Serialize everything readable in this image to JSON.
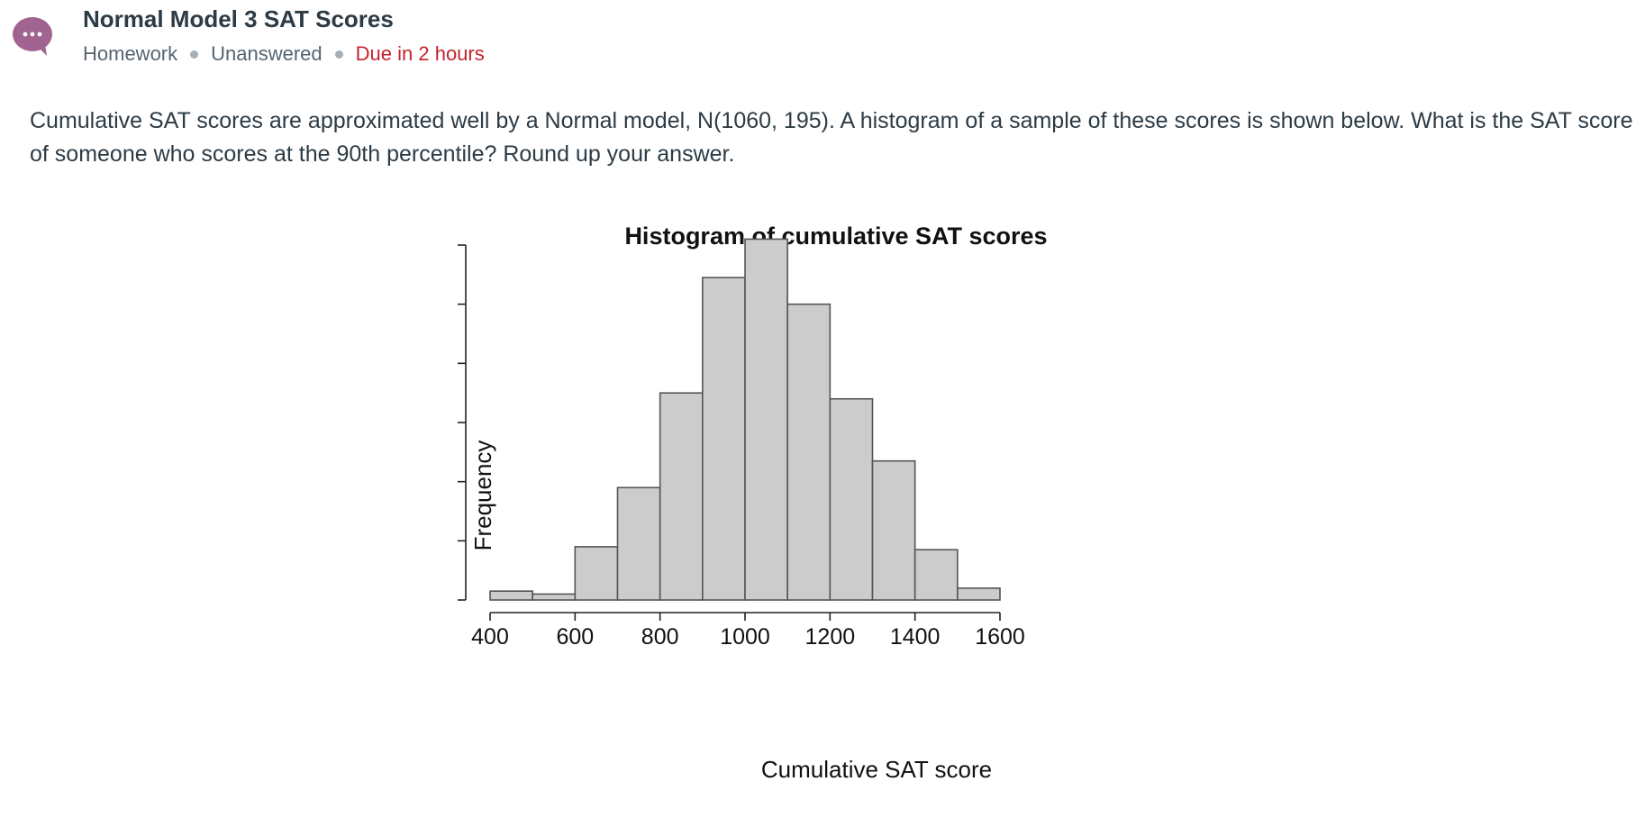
{
  "header": {
    "icon": "chat-bubble-icon",
    "title": "Normal Model 3 SAT Scores",
    "meta": {
      "type": "Homework",
      "status": "Unanswered",
      "due": "Due in 2 hours"
    },
    "colors": {
      "icon": "#a1638f",
      "due": "#c3232e"
    }
  },
  "question": {
    "text": "Cumulative SAT scores are approximated well by a Normal model, N(1060, 195). A histogram of a sample of these scores is shown below. What is the SAT score of someone who scores at the 90th percentile? Round up your answer."
  },
  "chart_data": {
    "type": "bar",
    "title": "Histogram of cumulative SAT scores",
    "xlabel": "Cumulative SAT score",
    "ylabel": "Frequency",
    "bin_edges": [
      400,
      500,
      600,
      700,
      800,
      900,
      1000,
      1100,
      1200,
      1300,
      1400,
      1500,
      1600
    ],
    "values": [
      3,
      2,
      18,
      38,
      70,
      109,
      122,
      100,
      68,
      47,
      17,
      4
    ],
    "xticks": [
      400,
      600,
      800,
      1000,
      1200,
      1400,
      1600
    ],
    "yticks": [
      0,
      20,
      40,
      60,
      80,
      100
    ],
    "xlim": [
      400,
      1600
    ],
    "ylim": [
      0,
      120
    ],
    "bar_color": "#cccccc",
    "grid": false
  }
}
